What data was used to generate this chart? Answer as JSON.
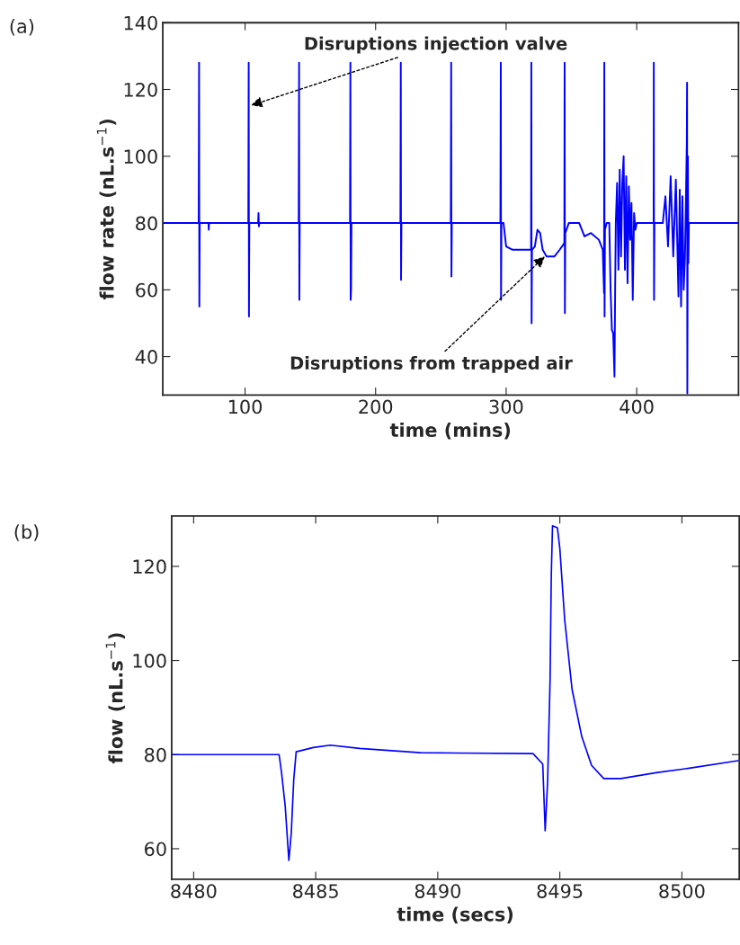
{
  "chart_data": [
    {
      "type": "line",
      "xlabel": "time (mins)",
      "ylabel": "flow rate (nL.s$^{−1}$)",
      "xlim": [
        37,
        478
      ],
      "ylim": [
        28.5,
        140
      ],
      "xticks": [
        100,
        200,
        300,
        400
      ],
      "yticks": [
        40,
        60,
        80,
        100,
        120,
        140
      ],
      "grid": false,
      "marker": "none",
      "line_style": "solid",
      "series": [
        {
          "color": "#0000ff",
          "x": [
            37,
            64.5,
            64.8,
            65.0,
            65.3,
            72,
            72.2,
            72.4,
            102.5,
            102.8,
            103.0,
            103.3,
            110,
            110.3,
            110.6,
            111,
            141.1,
            141.4,
            141.6,
            141.9,
            180.4,
            180.7,
            180.9,
            181.2,
            181.5,
            219,
            219.3,
            219.5,
            219.8,
            257.6,
            257.9,
            258.1,
            258.4,
            295.6,
            295.9,
            296.1,
            296.4,
            298,
            300,
            305,
            310,
            318,
            319.1,
            319.3,
            319.5,
            319.8,
            322,
            324,
            326,
            328,
            331,
            337,
            341,
            344.6,
            344.8,
            345.0,
            345.3,
            348,
            356,
            360,
            365,
            371,
            374,
            375.0,
            375.2,
            375.4,
            375.7,
            377,
            379,
            380,
            381,
            382,
            383,
            383.5,
            384,
            385,
            386,
            387,
            388,
            389,
            390,
            391,
            392,
            393,
            394,
            395,
            396,
            397,
            398,
            399,
            400,
            413,
            413.1,
            413.3,
            413.6,
            420,
            422,
            424,
            426,
            428,
            430,
            432,
            433,
            434,
            435,
            436,
            437,
            438.4,
            438.6,
            438.8,
            439.2,
            439.6,
            440,
            478
          ],
          "values": [
            80,
            80,
            128,
            55,
            80,
            80,
            78,
            80,
            80,
            128,
            52,
            80,
            80,
            83,
            79,
            80,
            80,
            128,
            57,
            80,
            80,
            128,
            57,
            60,
            80,
            80,
            128,
            63,
            80,
            80,
            128,
            64,
            80,
            80,
            128,
            57,
            80,
            80,
            73,
            72,
            72,
            72,
            72,
            128,
            50,
            72,
            73,
            78,
            77,
            72,
            70,
            70,
            72,
            74,
            128,
            53,
            77,
            80,
            80,
            76,
            77,
            75,
            72,
            59,
            128,
            52,
            78,
            80,
            80,
            60,
            48,
            47,
            34,
            60,
            80,
            92,
            66,
            96,
            70,
            92,
            100,
            66,
            94,
            62,
            91,
            75,
            86,
            57,
            83,
            78,
            80,
            80,
            128,
            57,
            80,
            80,
            88,
            73,
            94,
            70,
            93,
            58,
            90,
            55,
            88,
            60,
            70,
            104,
            122,
            29,
            100,
            68,
            80,
            80
          ]
        }
      ],
      "annotations": [
        {
          "text": "Disruptions injection valve",
          "x": 102.8,
          "y": 115
        },
        {
          "text": "Disruptions from trapped air",
          "x": 331,
          "y": 70.5
        },
        "(a)"
      ]
    },
    {
      "type": "line",
      "xlabel": "time (secs)",
      "ylabel": "flow (nL.s$^{−1}$)",
      "xlim": [
        8479.1,
        8502.35
      ],
      "ylim": [
        53.5,
        130.7
      ],
      "xticks": [
        8480,
        8485,
        8490,
        8495,
        8500
      ],
      "yticks": [
        60,
        80,
        100,
        120
      ],
      "grid": false,
      "marker": "none",
      "line_style": "solid",
      "series": [
        {
          "color": "#0000ff",
          "x": [
            8479.1,
            8483.5,
            8483.6,
            8483.75,
            8483.9,
            8484.0,
            8484.1,
            8484.2,
            8484.9,
            8485.6,
            8486.8,
            8489.3,
            8493.9,
            8494.3,
            8494.4,
            8494.5,
            8494.6,
            8494.65,
            8494.7,
            8494.9,
            8495.0,
            8495.2,
            8495.5,
            8495.9,
            8496.3,
            8496.8,
            8497.5,
            8499.0,
            8500.3,
            8502.3
          ],
          "values": [
            80,
            80,
            76.2,
            69.1,
            57.5,
            63.4,
            74.7,
            80.6,
            81.5,
            82,
            81.3,
            80.4,
            80.2,
            78,
            63.8,
            74.3,
            95.8,
            118,
            128.6,
            128.2,
            123.8,
            108.6,
            93.9,
            83.8,
            77.7,
            74.9,
            74.9,
            76.2,
            77.1,
            78.7
          ]
        }
      ],
      "annotations": [
        "(b)"
      ]
    }
  ]
}
